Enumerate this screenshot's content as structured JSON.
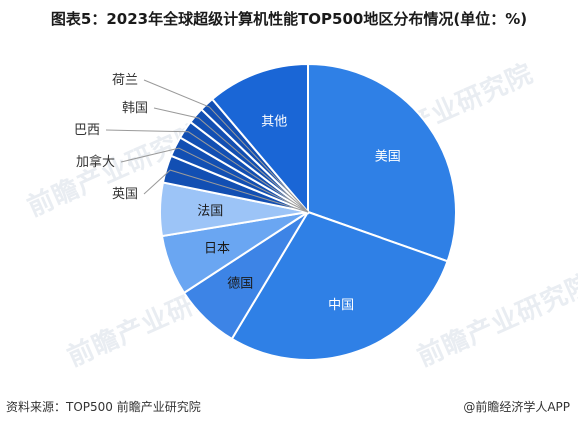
{
  "title": "图表5：2023年全球超级计算机性能TOP500地区分布情况(单位：%)",
  "watermark": "前瞻产业研究院",
  "chart_data": {
    "type": "pie",
    "categories": [
      "美国",
      "中国",
      "德国",
      "日本",
      "法国",
      "英国",
      "加拿大",
      "巴西",
      "韩国",
      "荷兰",
      "其他"
    ],
    "values": [
      30.4,
      28.2,
      7.2,
      6.6,
      5.8,
      3.0,
      2.2,
      2.0,
      1.8,
      1.6,
      11.2
    ],
    "colors": [
      "#2f80e6",
      "#2f80e6",
      "#3d84e6",
      "#6aa6f2",
      "#9cc4f7",
      "#124fb3",
      "#124fb3",
      "#124fb3",
      "#124fb3",
      "#124fb3",
      "#1a66d6"
    ],
    "labels_inside": [
      "美国",
      "中国",
      "德国",
      "日本",
      "法国",
      "其他"
    ],
    "labels_outside": [
      "英国",
      "加拿大",
      "巴西",
      "韩国",
      "荷兰"
    ],
    "start_angle": "12 o'clock, clockwise"
  },
  "footer": {
    "source": "资料来源：TOP500 前瞻产业研究院",
    "brand": "@前瞻经济学人APP"
  }
}
